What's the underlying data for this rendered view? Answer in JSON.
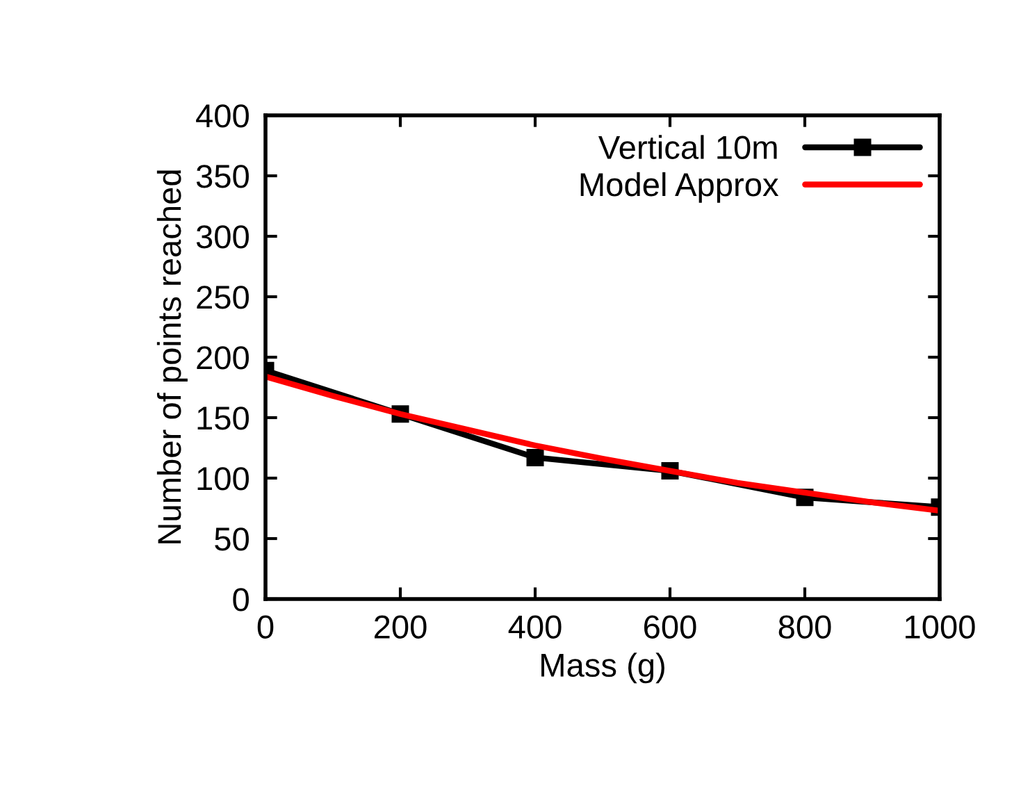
{
  "chart_data": {
    "type": "line",
    "xlabel": "Mass (g)",
    "ylabel": "Number of points reached",
    "xlim": [
      0,
      1000
    ],
    "xticks": [
      0,
      200,
      400,
      600,
      800,
      1000
    ],
    "ylim": [
      0,
      400
    ],
    "yticks": [
      0,
      50,
      100,
      150,
      200,
      250,
      300,
      350,
      400
    ],
    "grid": false,
    "legend": "top right",
    "series": [
      {
        "name": "Vertical 10m",
        "color": "#000000",
        "marker": "square",
        "x": [
          0,
          200,
          400,
          600,
          800,
          1000
        ],
        "values": [
          189,
          153,
          117,
          106,
          84,
          76
        ]
      },
      {
        "name": "Model Approx",
        "color": "#ff0000",
        "marker": "none",
        "x": [
          0,
          100,
          200,
          300,
          400,
          500,
          600,
          700,
          800,
          900,
          1000
        ],
        "values": [
          184,
          168,
          153,
          140,
          127,
          116,
          106,
          96,
          88,
          80,
          73
        ]
      }
    ]
  }
}
